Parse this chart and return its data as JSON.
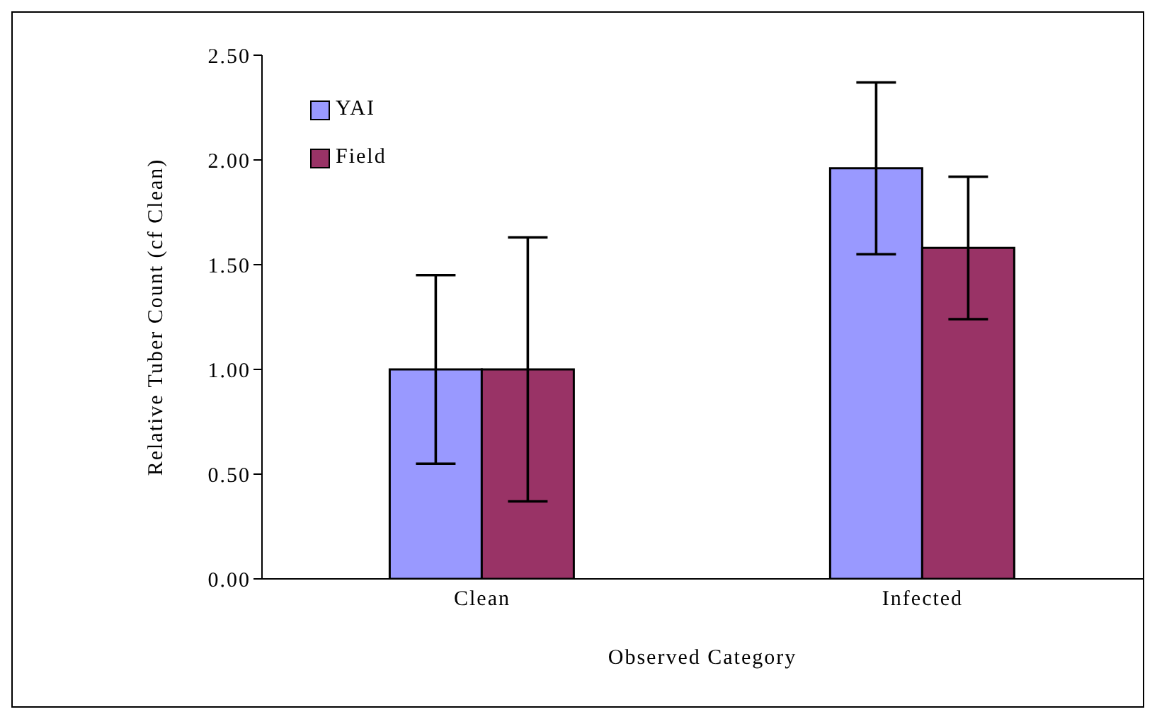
{
  "chart_data": {
    "type": "bar",
    "xlabel": "Observed Category",
    "ylabel": "Relative Tuber Count (cf Clean)",
    "categories": [
      "Clean",
      "Infected"
    ],
    "series": [
      {
        "name": "YAI",
        "color": "#9999ff",
        "values": [
          1.0,
          1.96
        ],
        "errors": [
          0.45,
          0.41
        ]
      },
      {
        "name": "Field",
        "color": "#993366",
        "values": [
          1.0,
          1.58
        ],
        "errors": [
          0.63,
          0.34
        ]
      }
    ],
    "ylim": [
      0,
      2.5
    ],
    "yticks": [
      {
        "value": 0,
        "label": "0.00"
      },
      {
        "value": 0.5,
        "label": "0.50"
      },
      {
        "value": 1,
        "label": "1.00"
      },
      {
        "value": 1.5,
        "label": "1.50"
      },
      {
        "value": 2,
        "label": "2.00"
      },
      {
        "value": 2.5,
        "label": "2.50"
      }
    ],
    "grid": false,
    "legend": "top left"
  }
}
